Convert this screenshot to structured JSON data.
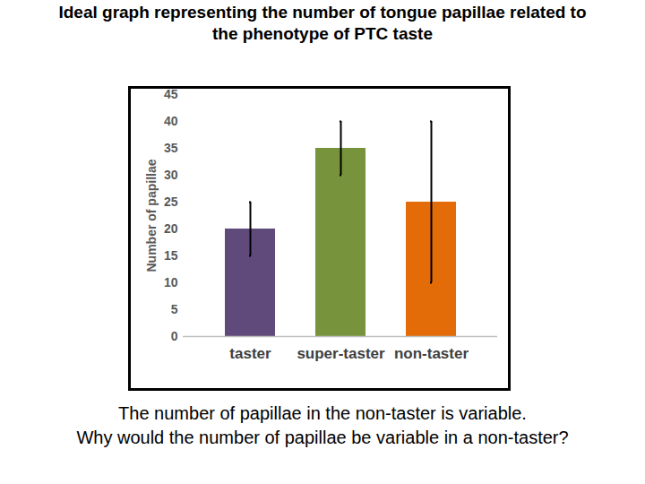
{
  "chart_data": {
    "type": "bar",
    "title": "Ideal graph representing the number of tongue papillae related to the phenotype of PTC taste",
    "y_label": "Number of papillae",
    "categories": [
      "taster",
      "super-taster",
      "non-taster"
    ],
    "values": [
      20,
      35,
      25
    ],
    "errors": [
      5,
      5,
      15
    ],
    "colors": [
      "#604a7b",
      "#77933c",
      "#e36c09"
    ],
    "ylim": [
      0,
      45
    ],
    "yticks": [
      0,
      5,
      10,
      15,
      20,
      25,
      30,
      35,
      40,
      45
    ],
    "grid": false,
    "caption": [
      "The number of papillae in the non-taster is variable.",
      "Why would the number of papillae be variable in a non-taster?"
    ]
  }
}
